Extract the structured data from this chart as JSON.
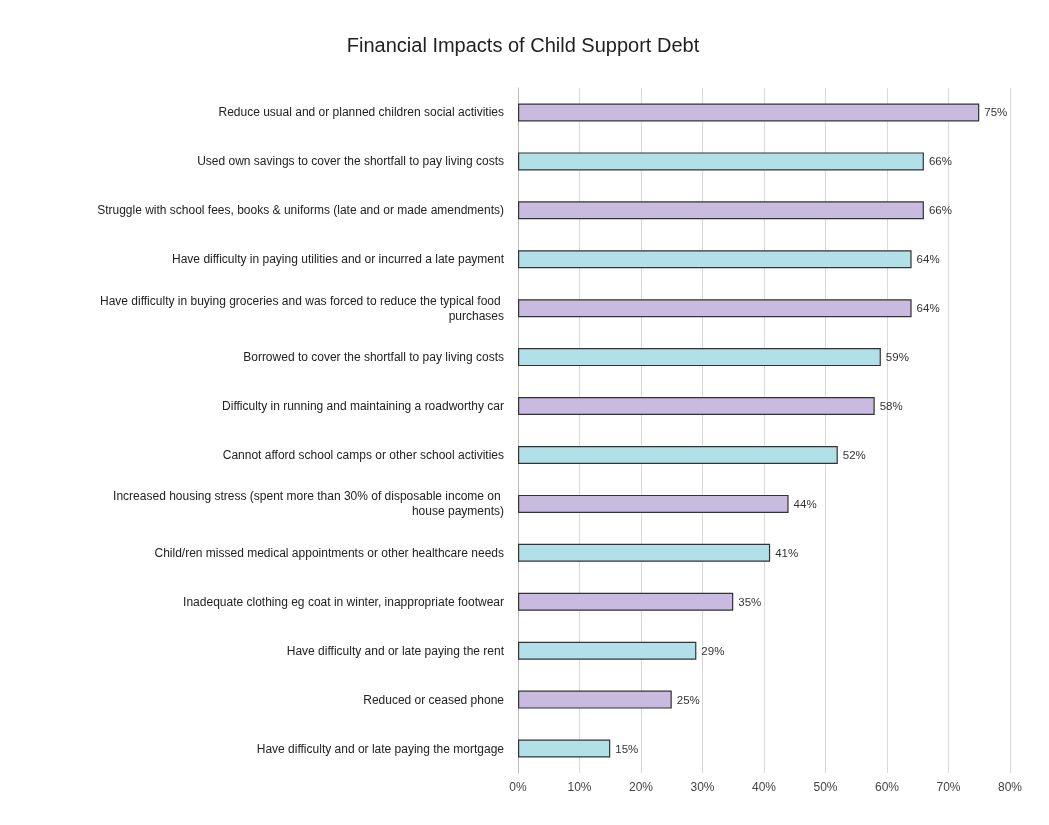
{
  "chart_data": {
    "type": "bar",
    "orientation": "horizontal",
    "title": "Financial Impacts of Child Support Debt",
    "categories": [
      "Reduce usual and or planned children social activities",
      "Used own savings to cover the shortfall to pay living costs",
      "Struggle with school fees, books & uniforms (late and or made amendments)",
      "Have difficulty in paying utilities and or incurred a late payment",
      "Have difficulty in buying groceries and was forced to reduce the typical food purchases",
      "Borrowed to cover the shortfall to pay living costs",
      "Difficulty in running and maintaining a roadworthy car",
      "Cannot afford school camps or other school activities",
      "Increased housing stress (spent more than 30% of disposable income on house payments)",
      "Child/ren missed medical appointments or other healthcare needs",
      "Inadequate clothing eg coat in winter, inappropriate footwear",
      "Have difficulty and or late paying the rent",
      "Reduced or ceased phone",
      "Have difficulty and or late paying the mortgage"
    ],
    "values": [
      75,
      66,
      66,
      64,
      64,
      59,
      58,
      52,
      44,
      41,
      35,
      29,
      25,
      15
    ],
    "value_labels": [
      "75%",
      "66%",
      "66%",
      "64%",
      "64%",
      "59%",
      "58%",
      "52%",
      "44%",
      "41%",
      "35%",
      "29%",
      "25%",
      "15%"
    ],
    "colors": [
      "#c9badf",
      "#b2e0e8",
      "#c9badf",
      "#b2e0e8",
      "#c9badf",
      "#b2e0e8",
      "#c9badf",
      "#b2e0e8",
      "#c9badf",
      "#b2e0e8",
      "#c9badf",
      "#b2e0e8",
      "#c9badf",
      "#b2e0e8"
    ],
    "xlim": [
      0,
      80
    ],
    "xticks": [
      {
        "value": 0,
        "label": "0%"
      },
      {
        "value": 10,
        "label": "10%"
      },
      {
        "value": 20,
        "label": "20%"
      },
      {
        "value": 30,
        "label": "30%"
      },
      {
        "value": 40,
        "label": "40%"
      },
      {
        "value": 50,
        "label": "50%"
      },
      {
        "value": 60,
        "label": "60%"
      },
      {
        "value": 70,
        "label": "70%"
      },
      {
        "value": 80,
        "label": "80%"
      }
    ],
    "grid": "x"
  }
}
